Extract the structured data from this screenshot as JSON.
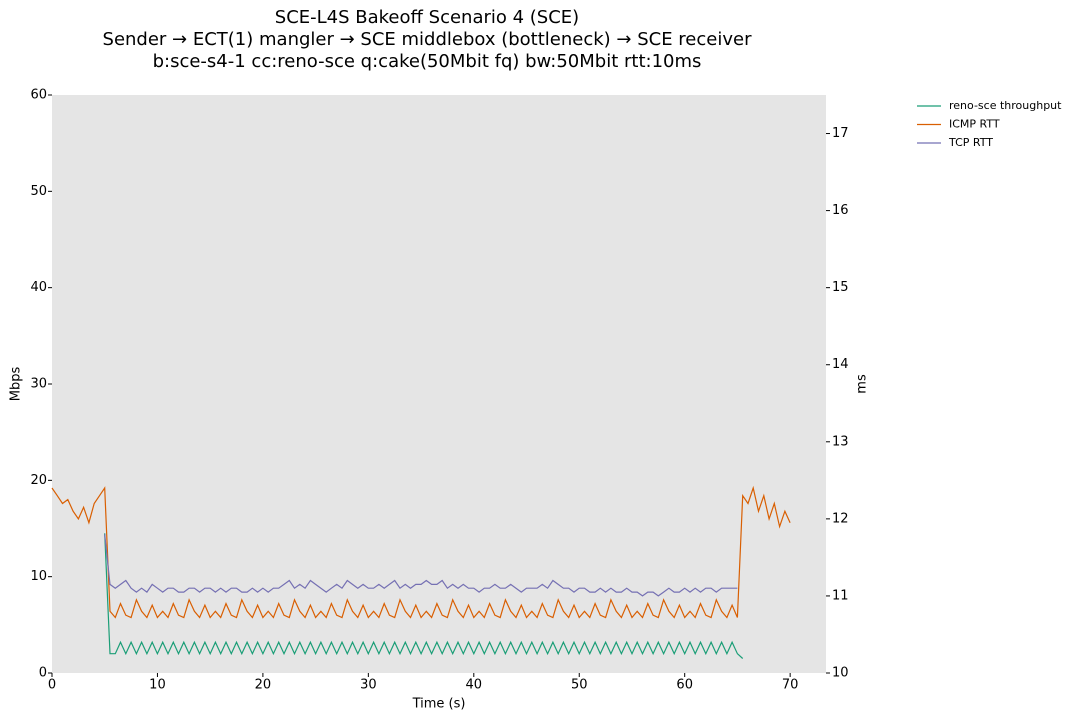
{
  "chart_data": {
    "type": "line",
    "title": "SCE-L4S Bakeoff Scenario 4 (SCE)",
    "subtitle": [
      "Sender → ECT(1) mangler → SCE middlebox (bottleneck) → SCE receiver",
      "b:sce-s4-1 cc:reno-sce q:cake(50Mbit fq) bw:50Mbit rtt:10ms"
    ],
    "xlabel": "Time (s)",
    "ylabel": "Mbps",
    "y2label": "ms",
    "xlim": [
      0,
      73.4
    ],
    "xticks": [
      0,
      10,
      20,
      30,
      40,
      50,
      60,
      70
    ],
    "ylim": [
      0,
      60
    ],
    "yticks": [
      0,
      10,
      20,
      30,
      40,
      50,
      60
    ],
    "y2lim": [
      10,
      17.5
    ],
    "y2ticks": [
      10,
      11,
      12,
      13,
      14,
      15,
      16,
      17
    ],
    "legend": "outside right",
    "x": [
      0,
      0.5,
      1,
      1.5,
      2,
      2.5,
      3,
      3.5,
      4,
      4.5,
      5,
      5.5,
      6,
      6.5,
      7,
      7.5,
      8,
      8.5,
      9,
      9.5,
      10,
      10.5,
      11,
      11.5,
      12,
      12.5,
      13,
      13.5,
      14,
      14.5,
      15,
      15.5,
      16,
      16.5,
      17,
      17.5,
      18,
      18.5,
      19,
      19.5,
      20,
      20.5,
      21,
      21.5,
      22,
      22.5,
      23,
      23.5,
      24,
      24.5,
      25,
      25.5,
      26,
      26.5,
      27,
      27.5,
      28,
      28.5,
      29,
      29.5,
      30,
      30.5,
      31,
      31.5,
      32,
      32.5,
      33,
      33.5,
      34,
      34.5,
      35,
      35.5,
      36,
      36.5,
      37,
      37.5,
      38,
      38.5,
      39,
      39.5,
      40,
      40.5,
      41,
      41.5,
      42,
      42.5,
      43,
      43.5,
      44,
      44.5,
      45,
      45.5,
      46,
      46.5,
      47,
      47.5,
      48,
      48.5,
      49,
      49.5,
      50,
      50.5,
      51,
      51.5,
      52,
      52.5,
      53,
      53.5,
      54,
      54.5,
      55,
      55.5,
      56,
      56.5,
      57,
      57.5,
      58,
      58.5,
      59,
      59.5,
      60,
      60.5,
      61,
      61.5,
      62,
      62.5,
      63,
      63.5,
      64,
      64.5,
      65,
      65.5,
      66,
      66.5,
      67,
      67.5,
      68,
      68.5,
      69,
      69.5,
      70
    ],
    "series": [
      {
        "name": "reno-sce throughput",
        "color": "#1b9e77",
        "axis": "y",
        "values": [
          null,
          null,
          null,
          null,
          null,
          null,
          null,
          null,
          null,
          null,
          14.5,
          2,
          2,
          3.2,
          2,
          3.2,
          2,
          3.2,
          2,
          3.2,
          2,
          3.2,
          2,
          3.2,
          2,
          3.2,
          2,
          3.2,
          2,
          3.2,
          2,
          3.2,
          2,
          3.2,
          2,
          3.2,
          2,
          3.2,
          2,
          3.2,
          2,
          3.2,
          2,
          3.2,
          2,
          3.2,
          2,
          3.2,
          2,
          3.2,
          2,
          3.2,
          2,
          3.2,
          2,
          3.2,
          2,
          3.2,
          2,
          3.2,
          2,
          3.2,
          2,
          3.2,
          2,
          3.2,
          2,
          3.2,
          2,
          3.2,
          2,
          3.2,
          2,
          3.2,
          2,
          3.2,
          2,
          3.2,
          2,
          3.2,
          2,
          3.2,
          2,
          3.2,
          2,
          3.2,
          2,
          3.2,
          2,
          3.2,
          2,
          3.2,
          2,
          3.2,
          2,
          3.2,
          2,
          3.2,
          2,
          3.2,
          2,
          3.2,
          2,
          3.2,
          2,
          3.2,
          2,
          3.2,
          2,
          3.2,
          2,
          3.2,
          2,
          3.2,
          2,
          3.2,
          2,
          3.2,
          2,
          3.2,
          2,
          3.2,
          2,
          3.2,
          2,
          3.2,
          2,
          3.2,
          2,
          3.2,
          2,
          1.5,
          null,
          null,
          null,
          null,
          null,
          null,
          null,
          null,
          null
        ]
      },
      {
        "name": "ICMP RTT",
        "color": "#d95f02",
        "axis": "y2",
        "values": [
          12.4,
          12.3,
          12.2,
          12.25,
          12.1,
          12.0,
          12.15,
          11.95,
          12.2,
          12.3,
          12.4,
          10.8,
          10.72,
          10.9,
          10.75,
          10.72,
          10.95,
          10.8,
          10.72,
          10.88,
          10.72,
          10.8,
          10.72,
          10.9,
          10.75,
          10.72,
          10.95,
          10.8,
          10.72,
          10.88,
          10.72,
          10.8,
          10.72,
          10.9,
          10.75,
          10.72,
          10.95,
          10.8,
          10.72,
          10.88,
          10.72,
          10.8,
          10.72,
          10.9,
          10.75,
          10.72,
          10.95,
          10.8,
          10.72,
          10.88,
          10.72,
          10.8,
          10.72,
          10.9,
          10.75,
          10.72,
          10.95,
          10.8,
          10.72,
          10.88,
          10.72,
          10.8,
          10.72,
          10.9,
          10.75,
          10.72,
          10.95,
          10.8,
          10.72,
          10.88,
          10.72,
          10.8,
          10.72,
          10.9,
          10.75,
          10.72,
          10.95,
          10.8,
          10.72,
          10.88,
          10.72,
          10.8,
          10.72,
          10.9,
          10.75,
          10.72,
          10.95,
          10.8,
          10.72,
          10.88,
          10.72,
          10.8,
          10.72,
          10.9,
          10.75,
          10.72,
          10.95,
          10.8,
          10.72,
          10.88,
          10.72,
          10.8,
          10.72,
          10.9,
          10.75,
          10.72,
          10.95,
          10.8,
          10.72,
          10.88,
          10.72,
          10.8,
          10.72,
          10.9,
          10.75,
          10.72,
          10.95,
          10.8,
          10.72,
          10.88,
          10.72,
          10.8,
          10.72,
          10.9,
          10.75,
          10.72,
          10.95,
          10.8,
          10.72,
          10.88,
          10.72,
          12.3,
          12.2,
          12.4,
          12.1,
          12.3,
          12.0,
          12.2,
          11.9,
          12.1,
          11.95
        ]
      },
      {
        "name": "TCP RTT",
        "color": "#7570b3",
        "axis": "y2",
        "values": [
          null,
          null,
          null,
          null,
          null,
          null,
          null,
          null,
          null,
          null,
          11.8,
          11.15,
          11.1,
          11.15,
          11.2,
          11.1,
          11.05,
          11.1,
          11.05,
          11.15,
          11.1,
          11.05,
          11.1,
          11.1,
          11.05,
          11.05,
          11.1,
          11.1,
          11.05,
          11.1,
          11.1,
          11.05,
          11.1,
          11.05,
          11.1,
          11.1,
          11.05,
          11.05,
          11.1,
          11.05,
          11.1,
          11.05,
          11.1,
          11.1,
          11.15,
          11.2,
          11.1,
          11.15,
          11.1,
          11.2,
          11.15,
          11.1,
          11.05,
          11.1,
          11.15,
          11.1,
          11.2,
          11.15,
          11.1,
          11.15,
          11.1,
          11.1,
          11.15,
          11.1,
          11.15,
          11.2,
          11.1,
          11.15,
          11.1,
          11.15,
          11.15,
          11.2,
          11.15,
          11.15,
          11.2,
          11.1,
          11.15,
          11.1,
          11.15,
          11.1,
          11.1,
          11.05,
          11.1,
          11.1,
          11.15,
          11.1,
          11.1,
          11.15,
          11.1,
          11.05,
          11.1,
          11.1,
          11.1,
          11.15,
          11.1,
          11.2,
          11.15,
          11.1,
          11.1,
          11.05,
          11.1,
          11.1,
          11.05,
          11.05,
          11.1,
          11.05,
          11.1,
          11.05,
          11.05,
          11.1,
          11.05,
          11.05,
          11.0,
          11.05,
          11.05,
          11.0,
          11.05,
          11.1,
          11.05,
          11.05,
          11.1,
          11.05,
          11.1,
          11.05,
          11.1,
          11.1,
          11.05,
          11.1,
          11.1,
          11.1,
          11.1,
          null,
          null,
          null,
          null,
          null,
          null,
          null,
          null,
          null,
          null
        ]
      }
    ]
  }
}
